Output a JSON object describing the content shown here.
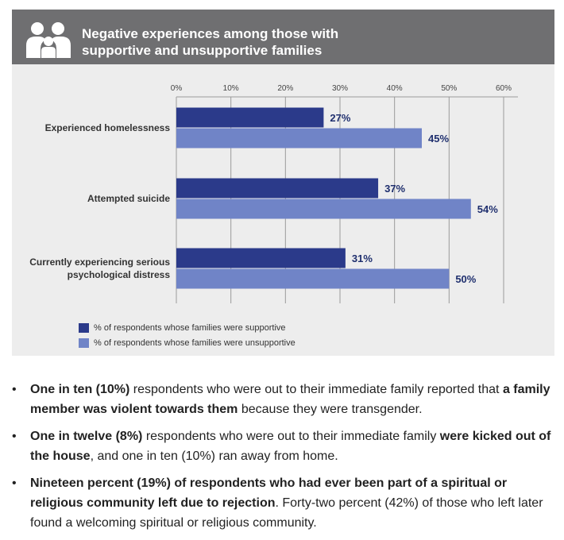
{
  "header": {
    "icon": "family-icon",
    "title_line1": "Negative experiences among those with",
    "title_line2": "supportive and unsupportive families"
  },
  "chart_data": {
    "type": "bar",
    "orientation": "horizontal",
    "categories": [
      "Experienced homelessness",
      "Attempted suicide",
      "Currently experiencing serious psychological distress"
    ],
    "category_lines": [
      [
        "Experienced homelessness"
      ],
      [
        "Attempted suicide"
      ],
      [
        "Currently experiencing serious",
        "psychological distress"
      ]
    ],
    "series": [
      {
        "name": "% of respondents whose families were supportive",
        "values": [
          27,
          37,
          31
        ],
        "labels": [
          "27%",
          "37%",
          "31%"
        ],
        "color": "#2b3a8a"
      },
      {
        "name": "% of respondents whose families were unsupportive",
        "values": [
          45,
          54,
          50
        ],
        "labels": [
          "45%",
          "54%",
          "50%"
        ],
        "color": "#7084c7"
      }
    ],
    "xlim": [
      0,
      60
    ],
    "ticks": [
      "0%",
      "10%",
      "20%",
      "30%",
      "40%",
      "50%",
      "60%"
    ],
    "grid": true,
    "legend_position": "bottom-left"
  },
  "bullets": [
    [
      {
        "t": "One in ten (10%)",
        "b": true
      },
      {
        "t": " respondents who were out to their immediate family reported that ",
        "b": false
      },
      {
        "t": "a family member was violent towards them",
        "b": true
      },
      {
        "t": " because they were transgender.",
        "b": false
      }
    ],
    [
      {
        "t": "One in twelve (8%)",
        "b": true
      },
      {
        "t": " respondents who were out to their immediate family ",
        "b": false
      },
      {
        "t": "were kicked out of the house",
        "b": true
      },
      {
        "t": ", and one in ten (10%) ran away from home.",
        "b": false
      }
    ],
    [
      {
        "t": "Nineteen percent (19%) of respondents who had ever been part of a spiritual or religious community left due to rejection",
        "b": true
      },
      {
        "t": ". Forty-two percent (42%) of those who left later found a welcoming spiritual or religious community.",
        "b": false
      }
    ]
  ]
}
